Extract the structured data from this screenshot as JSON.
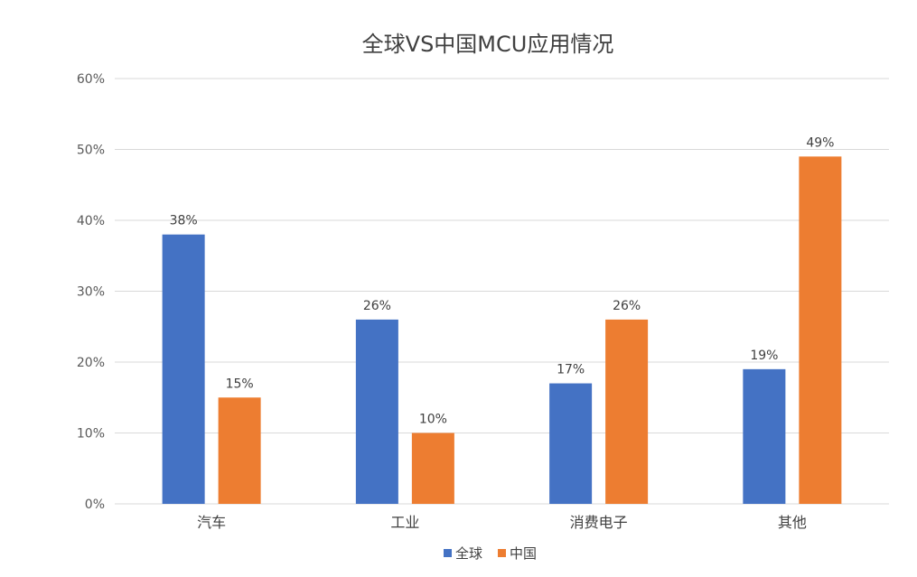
{
  "chart_data": {
    "type": "bar",
    "title": "全球VS中国MCU应用情况",
    "categories": [
      "汽车",
      "工业",
      "消费电子",
      "其他"
    ],
    "series": [
      {
        "name": "全球",
        "values": [
          38,
          26,
          17,
          19
        ],
        "color": "#4472c4"
      },
      {
        "name": "中国",
        "values": [
          15,
          10,
          26,
          49
        ],
        "color": "#ed7d31"
      }
    ],
    "data_label_suffix": "%",
    "yticks": [
      "0%",
      "10%",
      "20%",
      "30%",
      "40%",
      "50%",
      "60%"
    ],
    "ylim": [
      0,
      60
    ],
    "grid": true,
    "legend_position": "bottom"
  }
}
